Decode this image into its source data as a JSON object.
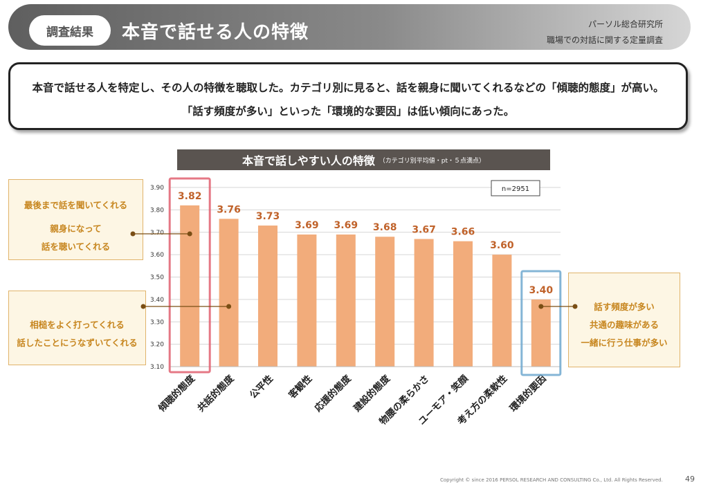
{
  "header": {
    "tag": "調査結果",
    "title": "本音で話せる人の特徴",
    "org": "パーソル総合研究所",
    "subtitle": "職場での対話に関する定量調査"
  },
  "summary": {
    "line1": "本音で話せる人を特定し、その人の特徴を聴取した。カテゴリ別に見ると、話を親身に聞いてくれるなどの「傾聴的態度」が高い。",
    "line2": "「話す頻度が多い」といった「環境的な要因」は低い傾向にあった。"
  },
  "chart_data": {
    "type": "bar",
    "title": "本音で話しやすい人の特徴",
    "subtitle": "（カテゴリ別平均値・pt・５点満点）",
    "n_label": "n=2951",
    "categories": [
      "傾聴的態度",
      "共話的態度",
      "公平性",
      "客観性",
      "応援的態度",
      "建設的態度",
      "物腰の柔らかさ",
      "ユーモア・笑顔",
      "考え方の柔軟性",
      "環境的要因"
    ],
    "values": [
      3.82,
      3.76,
      3.73,
      3.69,
      3.69,
      3.68,
      3.67,
      3.66,
      3.6,
      3.4
    ],
    "value_labels": [
      "3.82",
      "3.76",
      "3.73",
      "3.69",
      "3.69",
      "3.68",
      "3.67",
      "3.66",
      "3.60",
      "3.40"
    ],
    "ylim": [
      3.1,
      3.9
    ],
    "yticks": [
      "3.90",
      "3.80",
      "3.70",
      "3.60",
      "3.50",
      "3.40",
      "3.30",
      "3.20",
      "3.10"
    ],
    "grid": true,
    "bar_color": "#f2ac7b",
    "label_color": "#c0622a",
    "highlight_high": {
      "category": "傾聴的態度",
      "color": "#e06070"
    },
    "highlight_low": {
      "category": "環境的要因",
      "color": "#6fa8cf"
    }
  },
  "callouts": {
    "top_left": [
      "最後まで話を聞いてくれる",
      "親身になって",
      "話を聴いてくれる"
    ],
    "bottom_left": [
      "相槌をよく打ってくれる",
      "話したことにうなずいてくれる"
    ],
    "right": [
      "話す頻度が多い",
      "共通の趣味がある",
      "一緒に行う仕事が多い"
    ]
  },
  "footer": {
    "copyright": "Copyright © since 2016  PERSOL  RESEARCH AND CONSULTING Co., Ltd. All Rights Reserved.",
    "page": "49"
  },
  "colors": {
    "callout_text": "#c7861f",
    "callout_bg": "#fdf6e4",
    "connector": "#7a4e14"
  }
}
